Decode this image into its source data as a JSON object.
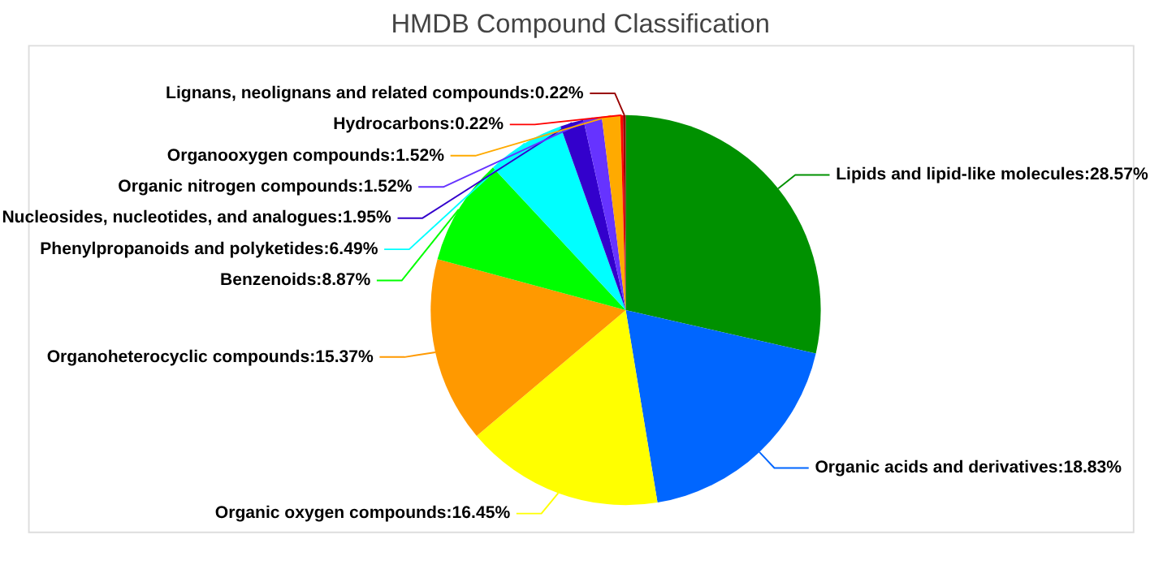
{
  "chart_data": {
    "type": "pie",
    "title": "HMDB Compound Classification",
    "categories": [
      "Lipids and lipid-like molecules",
      "Organic acids and derivatives",
      "Organic oxygen compounds",
      "Organoheterocyclic compounds",
      "Benzenoids",
      "Phenylpropanoids and polyketides",
      "Nucleosides, nucleotides, and analogues",
      "Organic nitrogen compounds",
      "Organooxygen compounds",
      "Hydrocarbons",
      "Lignans, neolignans and related compounds"
    ],
    "values": [
      28.57,
      18.83,
      16.45,
      15.37,
      8.87,
      6.49,
      1.95,
      1.52,
      1.52,
      0.22,
      0.22
    ],
    "value_labels": [
      "28.57%",
      "18.83%",
      "16.45%",
      "15.37%",
      "8.87%",
      "6.49%",
      "1.95%",
      "1.52%",
      "1.52%",
      "0.22%",
      "0.22%"
    ],
    "colors": [
      "#009100",
      "#0066ff",
      "#ffff00",
      "#ff9900",
      "#00ff00",
      "#00ffff",
      "#3300cc",
      "#6633ff",
      "#ffaa00",
      "#ff0000",
      "#990000"
    ],
    "legend": false
  }
}
